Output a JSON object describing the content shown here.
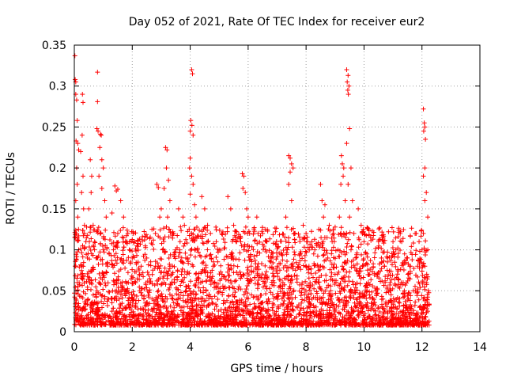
{
  "chart_data": {
    "type": "scatter",
    "title": "Day 052 of 2021, Rate Of TEC Index for receiver eur2",
    "xlabel": "GPS time / hours",
    "ylabel": "ROTI / TECUs",
    "xlim": [
      0,
      14
    ],
    "ylim": [
      0,
      0.35
    ],
    "x_ticks": [
      0,
      2,
      4,
      6,
      8,
      10,
      12,
      14
    ],
    "x_tick_labels": [
      "0",
      "2",
      "4",
      "6",
      "8",
      "10",
      "12",
      "14"
    ],
    "y_ticks": [
      0,
      0.05,
      0.1,
      0.15,
      0.2,
      0.25,
      0.3,
      0.35
    ],
    "y_tick_labels": [
      "0",
      "0.05",
      "0.1",
      "0.15",
      "0.2",
      "0.25",
      "0.3",
      "0.35"
    ],
    "grid": true,
    "marker": "plus",
    "color": "#ff0000",
    "series": [
      {
        "name": "",
        "points": [
          [
            0.02,
            0.337
          ],
          [
            0.03,
            0.308
          ],
          [
            0.05,
            0.305
          ],
          [
            0.05,
            0.29
          ],
          [
            0.08,
            0.283
          ],
          [
            0.1,
            0.258
          ],
          [
            0.06,
            0.233
          ],
          [
            0.12,
            0.23
          ],
          [
            0.15,
            0.222
          ],
          [
            0.08,
            0.2
          ],
          [
            0.1,
            0.18
          ],
          [
            0.05,
            0.16
          ],
          [
            0.12,
            0.14
          ],
          [
            0.07,
            0.12
          ],
          [
            0.15,
            0.1
          ],
          [
            0.03,
            0.08
          ],
          [
            0.1,
            0.06
          ],
          [
            0.05,
            0.04
          ],
          [
            0.12,
            0.03
          ],
          [
            0.08,
            0.02
          ],
          [
            0.28,
            0.29
          ],
          [
            0.3,
            0.28
          ],
          [
            0.27,
            0.24
          ],
          [
            0.22,
            0.22
          ],
          [
            0.3,
            0.19
          ],
          [
            0.25,
            0.17
          ],
          [
            0.32,
            0.15
          ],
          [
            0.35,
            0.13
          ],
          [
            0.4,
            0.11
          ],
          [
            0.45,
            0.09
          ],
          [
            0.55,
            0.21
          ],
          [
            0.6,
            0.19
          ],
          [
            0.58,
            0.17
          ],
          [
            0.5,
            0.15
          ],
          [
            0.65,
            0.13
          ],
          [
            0.7,
            0.11
          ],
          [
            0.75,
            0.09
          ],
          [
            0.8,
            0.317
          ],
          [
            0.8,
            0.281
          ],
          [
            0.78,
            0.248
          ],
          [
            0.82,
            0.245
          ],
          [
            0.9,
            0.241
          ],
          [
            0.93,
            0.24
          ],
          [
            0.88,
            0.225
          ],
          [
            0.95,
            0.21
          ],
          [
            1.0,
            0.2
          ],
          [
            0.85,
            0.19
          ],
          [
            0.95,
            0.175
          ],
          [
            1.05,
            0.16
          ],
          [
            1.1,
            0.14
          ],
          [
            0.9,
            0.12
          ],
          [
            1.0,
            0.1
          ],
          [
            1.15,
            0.08
          ],
          [
            0.85,
            0.06
          ],
          [
            1.05,
            0.04
          ],
          [
            0.95,
            0.02
          ],
          [
            1.4,
            0.178
          ],
          [
            1.45,
            0.172
          ],
          [
            1.5,
            0.174
          ],
          [
            1.6,
            0.16
          ],
          [
            1.3,
            0.145
          ],
          [
            1.7,
            0.14
          ],
          [
            1.5,
            0.12
          ],
          [
            1.35,
            0.1
          ],
          [
            1.65,
            0.085
          ],
          [
            1.45,
            0.06
          ],
          [
            1.55,
            0.04
          ],
          [
            1.3,
            0.025
          ],
          [
            1.75,
            0.03
          ],
          [
            1.85,
            0.12
          ],
          [
            1.9,
            0.1
          ],
          [
            2.0,
            0.09
          ],
          [
            2.2,
            0.085
          ],
          [
            2.3,
            0.07
          ],
          [
            2.5,
            0.09
          ],
          [
            2.6,
            0.06
          ],
          [
            2.4,
            0.04
          ],
          [
            2.1,
            0.03
          ],
          [
            2.7,
            0.025
          ],
          [
            2.85,
            0.18
          ],
          [
            2.9,
            0.176
          ],
          [
            3.0,
            0.15
          ],
          [
            2.95,
            0.14
          ],
          [
            2.8,
            0.12
          ],
          [
            3.05,
            0.1
          ],
          [
            2.9,
            0.08
          ],
          [
            3.1,
            0.06
          ],
          [
            3.15,
            0.225
          ],
          [
            3.2,
            0.222
          ],
          [
            3.18,
            0.2
          ],
          [
            3.25,
            0.185
          ],
          [
            3.1,
            0.175
          ],
          [
            3.3,
            0.16
          ],
          [
            3.22,
            0.14
          ],
          [
            3.4,
            0.12
          ],
          [
            3.5,
            0.1
          ],
          [
            3.3,
            0.08
          ],
          [
            3.45,
            0.06
          ],
          [
            3.2,
            0.04
          ],
          [
            3.6,
            0.15
          ],
          [
            3.75,
            0.14
          ],
          [
            3.8,
            0.13
          ],
          [
            3.65,
            0.11
          ],
          [
            3.85,
            0.09
          ],
          [
            3.7,
            0.07
          ],
          [
            4.05,
            0.32
          ],
          [
            4.08,
            0.315
          ],
          [
            4.02,
            0.258
          ],
          [
            4.06,
            0.252
          ],
          [
            4.0,
            0.245
          ],
          [
            4.1,
            0.24
          ],
          [
            4.0,
            0.212
          ],
          [
            3.98,
            0.2
          ],
          [
            4.05,
            0.19
          ],
          [
            4.1,
            0.18
          ],
          [
            4.0,
            0.168
          ],
          [
            4.15,
            0.155
          ],
          [
            4.2,
            0.14
          ],
          [
            4.05,
            0.12
          ],
          [
            4.25,
            0.1
          ],
          [
            4.1,
            0.08
          ],
          [
            4.3,
            0.06
          ],
          [
            4.15,
            0.04
          ],
          [
            4.4,
            0.165
          ],
          [
            4.5,
            0.15
          ],
          [
            4.6,
            0.13
          ],
          [
            4.7,
            0.12
          ],
          [
            4.9,
            0.11
          ],
          [
            5.0,
            0.1
          ],
          [
            4.8,
            0.08
          ],
          [
            5.1,
            0.07
          ],
          [
            4.55,
            0.05
          ],
          [
            5.3,
            0.165
          ],
          [
            5.4,
            0.15
          ],
          [
            5.5,
            0.13
          ],
          [
            5.6,
            0.11
          ],
          [
            5.45,
            0.09
          ],
          [
            5.65,
            0.07
          ],
          [
            5.8,
            0.193
          ],
          [
            5.85,
            0.19
          ],
          [
            5.82,
            0.175
          ],
          [
            5.9,
            0.17
          ],
          [
            5.95,
            0.15
          ],
          [
            6.0,
            0.14
          ],
          [
            6.05,
            0.12
          ],
          [
            5.85,
            0.1
          ],
          [
            6.1,
            0.08
          ],
          [
            6.3,
            0.14
          ],
          [
            6.5,
            0.12
          ],
          [
            6.6,
            0.1
          ],
          [
            6.8,
            0.09
          ],
          [
            7.0,
            0.08
          ],
          [
            6.9,
            0.06
          ],
          [
            6.7,
            0.04
          ],
          [
            7.05,
            0.02
          ],
          [
            6.4,
            0.03
          ],
          [
            7.4,
            0.215
          ],
          [
            7.45,
            0.212
          ],
          [
            7.5,
            0.205
          ],
          [
            7.55,
            0.2
          ],
          [
            7.45,
            0.195
          ],
          [
            7.4,
            0.18
          ],
          [
            7.5,
            0.16
          ],
          [
            7.3,
            0.14
          ],
          [
            7.6,
            0.12
          ],
          [
            7.35,
            0.1
          ],
          [
            7.55,
            0.08
          ],
          [
            7.2,
            0.06
          ],
          [
            7.4,
            0.04
          ],
          [
            7.1,
            0.015
          ],
          [
            7.9,
            0.13
          ],
          [
            8.0,
            0.12
          ],
          [
            8.2,
            0.11
          ],
          [
            8.3,
            0.1
          ],
          [
            8.1,
            0.08
          ],
          [
            8.35,
            0.06
          ],
          [
            8.5,
            0.18
          ],
          [
            8.55,
            0.16
          ],
          [
            8.6,
            0.14
          ],
          [
            8.65,
            0.155
          ],
          [
            8.8,
            0.13
          ],
          [
            8.9,
            0.11
          ],
          [
            8.75,
            0.09
          ],
          [
            9.0,
            0.07
          ],
          [
            8.85,
            0.05
          ],
          [
            9.25,
            0.205
          ],
          [
            9.3,
            0.2
          ],
          [
            9.22,
            0.215
          ],
          [
            9.28,
            0.19
          ],
          [
            9.2,
            0.18
          ],
          [
            9.35,
            0.16
          ],
          [
            9.15,
            0.14
          ],
          [
            9.3,
            0.12
          ],
          [
            9.1,
            0.1
          ],
          [
            9.25,
            0.08
          ],
          [
            9.4,
            0.32
          ],
          [
            9.45,
            0.313
          ],
          [
            9.42,
            0.305
          ],
          [
            9.48,
            0.3
          ],
          [
            9.44,
            0.295
          ],
          [
            9.46,
            0.29
          ],
          [
            9.5,
            0.248
          ],
          [
            9.4,
            0.23
          ],
          [
            9.55,
            0.2
          ],
          [
            9.45,
            0.18
          ],
          [
            9.6,
            0.16
          ],
          [
            9.5,
            0.14
          ],
          [
            9.65,
            0.12
          ],
          [
            9.55,
            0.1
          ],
          [
            9.8,
            0.15
          ],
          [
            9.9,
            0.13
          ],
          [
            10.0,
            0.11
          ],
          [
            10.1,
            0.095
          ],
          [
            9.95,
            0.08
          ],
          [
            10.2,
            0.07
          ],
          [
            10.05,
            0.05
          ],
          [
            10.5,
            0.11
          ],
          [
            10.6,
            0.09
          ],
          [
            10.7,
            0.08
          ],
          [
            10.8,
            0.075
          ],
          [
            10.9,
            0.06
          ],
          [
            10.65,
            0.04
          ],
          [
            10.95,
            0.03
          ],
          [
            11.0,
            0.11
          ],
          [
            11.1,
            0.1
          ],
          [
            11.3,
            0.11
          ],
          [
            11.4,
            0.095
          ],
          [
            11.5,
            0.09
          ],
          [
            11.6,
            0.08
          ],
          [
            11.35,
            0.06
          ],
          [
            11.7,
            0.05
          ],
          [
            11.8,
            0.12
          ],
          [
            11.9,
            0.11
          ],
          [
            12.0,
            0.1
          ],
          [
            11.85,
            0.08
          ],
          [
            12.05,
            0.272
          ],
          [
            12.08,
            0.255
          ],
          [
            12.1,
            0.25
          ],
          [
            12.06,
            0.245
          ],
          [
            12.12,
            0.235
          ],
          [
            12.1,
            0.2
          ],
          [
            12.05,
            0.19
          ],
          [
            12.15,
            0.17
          ],
          [
            12.1,
            0.16
          ],
          [
            12.2,
            0.14
          ],
          [
            12.05,
            0.12
          ],
          [
            12.2,
            0.1
          ],
          [
            12.1,
            0.08
          ],
          [
            12.15,
            0.06
          ],
          [
            12.05,
            0.04
          ],
          [
            12.2,
            0.025
          ]
        ]
      }
    ]
  }
}
